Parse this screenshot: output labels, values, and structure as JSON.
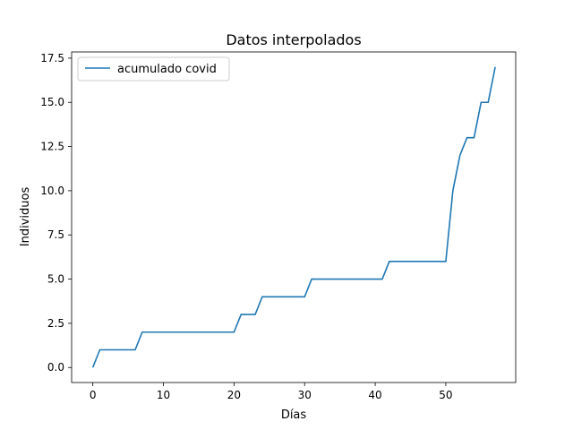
{
  "chart_data": {
    "type": "line",
    "title": "Datos interpolados",
    "xlabel": "Días",
    "ylabel": "Individuos",
    "xlim": [
      -3.0,
      59.9
    ],
    "ylim": [
      -0.85,
      17.85
    ],
    "xticks": [
      0,
      10,
      20,
      30,
      40,
      50
    ],
    "yticks": [
      0.0,
      2.5,
      5.0,
      7.5,
      10.0,
      12.5,
      15.0,
      17.5
    ],
    "ytick_labels": [
      "0.0",
      "2.5",
      "5.0",
      "7.5",
      "10.0",
      "12.5",
      "15.0",
      "17.5"
    ],
    "grid": false,
    "legend": "upper-left",
    "series": [
      {
        "name": "acumulado covid",
        "color": "#1f77b4",
        "x": [
          0,
          1,
          2,
          3,
          4,
          5,
          6,
          7,
          8,
          9,
          10,
          11,
          12,
          13,
          14,
          15,
          16,
          17,
          18,
          19,
          20,
          21,
          22,
          23,
          24,
          25,
          26,
          27,
          28,
          29,
          30,
          31,
          32,
          33,
          34,
          35,
          36,
          37,
          38,
          39,
          40,
          41,
          42,
          43,
          44,
          45,
          46,
          47,
          48,
          49,
          50,
          51,
          52,
          53,
          54,
          55,
          56,
          57
        ],
        "y": [
          0,
          1,
          1,
          1,
          1,
          1,
          1,
          2,
          2,
          2,
          2,
          2,
          2,
          2,
          2,
          2,
          2,
          2,
          2,
          2,
          2,
          3,
          3,
          3,
          4,
          4,
          4,
          4,
          4,
          4,
          4,
          5,
          5,
          5,
          5,
          5,
          5,
          5,
          5,
          5,
          5,
          5,
          6,
          6,
          6,
          6,
          6,
          6,
          6,
          6,
          6,
          10,
          12,
          13,
          13,
          15,
          15,
          17
        ]
      }
    ]
  }
}
